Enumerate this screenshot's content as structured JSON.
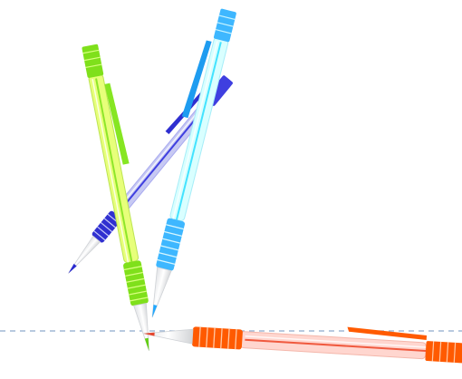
{
  "scene": {
    "background": "#ffffff",
    "guide_line": {
      "style": "dashed",
      "color": "#8eaacc"
    },
    "pens": [
      {
        "name": "blue-pen",
        "barrel_color": "#c7c9f3",
        "stripe_color": "#3f3fe0",
        "accent_color": "#2f2fd0",
        "grip_color": "#3030d0",
        "tip_color": "#2b2bcf"
      },
      {
        "name": "green-pen",
        "barrel_color": "#e7ff7a",
        "stripe_color": "#8ee62a",
        "accent_color": "#86e622",
        "grip_color": "#7fe01b",
        "tip_color": "#63cf13"
      },
      {
        "name": "cyan-pen",
        "barrel_color": "#d9ffff",
        "stripe_color": "#43e3ff",
        "accent_color": "#1e9cf0",
        "grip_color": "#3eb7ff",
        "tip_color": "#21a8ff"
      },
      {
        "name": "orange-pen",
        "barrel_color": "#ffd6cf",
        "stripe_color": "#f05a3f",
        "accent_color": "#ff5b00",
        "grip_color": "#ff5a00",
        "tip_color": "#e5472f"
      }
    ]
  }
}
